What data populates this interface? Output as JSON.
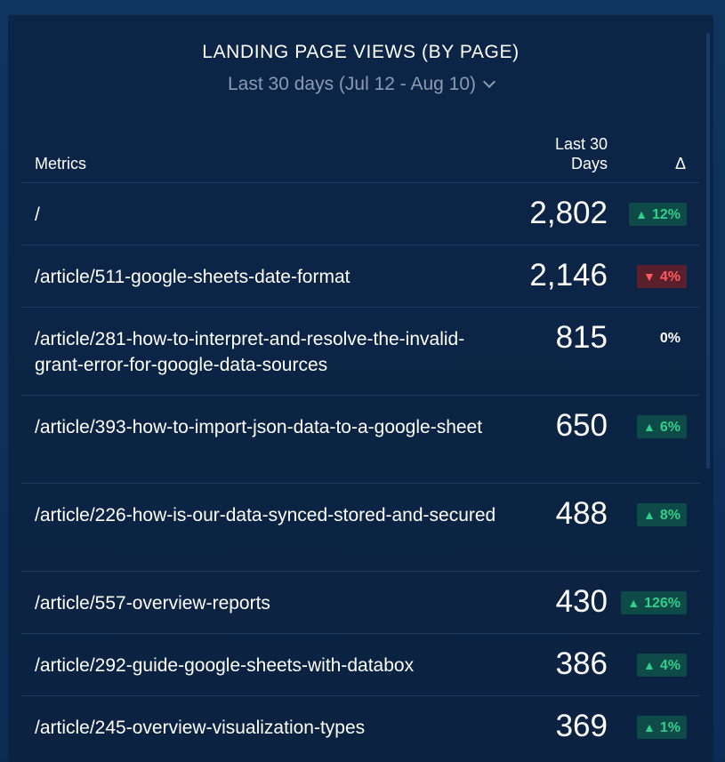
{
  "widget": {
    "title": "LANDING PAGE VIEWS (BY PAGE)",
    "period": "Last 30 days (Jul 12 - Aug 10)",
    "period_icon": "chevron-down-icon"
  },
  "table": {
    "columns": {
      "metrics": "Metrics",
      "days_line1": "Last 30",
      "days_line2": "Days",
      "delta": "Δ"
    },
    "rows": [
      {
        "page": "/",
        "value": "2,802",
        "delta": "12%",
        "trend": "up"
      },
      {
        "page": "/article/511-google-sheets-date-format",
        "value": "2,146",
        "delta": "4%",
        "trend": "down"
      },
      {
        "page": "/article/281-how-to-interpret-and-resolve-the-invalid-grant-error-for-google-data-sources",
        "value": "815",
        "delta": "0%",
        "trend": "zero"
      },
      {
        "page": "/article/393-how-to-import-json-data-to-a-google-sheet",
        "value": "650",
        "delta": "6%",
        "trend": "up"
      },
      {
        "page": "/article/226-how-is-our-data-synced-stored-and-secured",
        "value": "488",
        "delta": "8%",
        "trend": "up"
      },
      {
        "page": "/article/557-overview-reports",
        "value": "430",
        "delta": "126%",
        "trend": "up"
      },
      {
        "page": "/article/292-guide-google-sheets-with-databox",
        "value": "386",
        "delta": "4%",
        "trend": "up"
      },
      {
        "page": "/article/245-overview-visualization-types",
        "value": "369",
        "delta": "1%",
        "trend": "up"
      }
    ]
  },
  "colors": {
    "up": "#2fd08a",
    "down": "#ff5a5a",
    "background": "#0c2547"
  }
}
